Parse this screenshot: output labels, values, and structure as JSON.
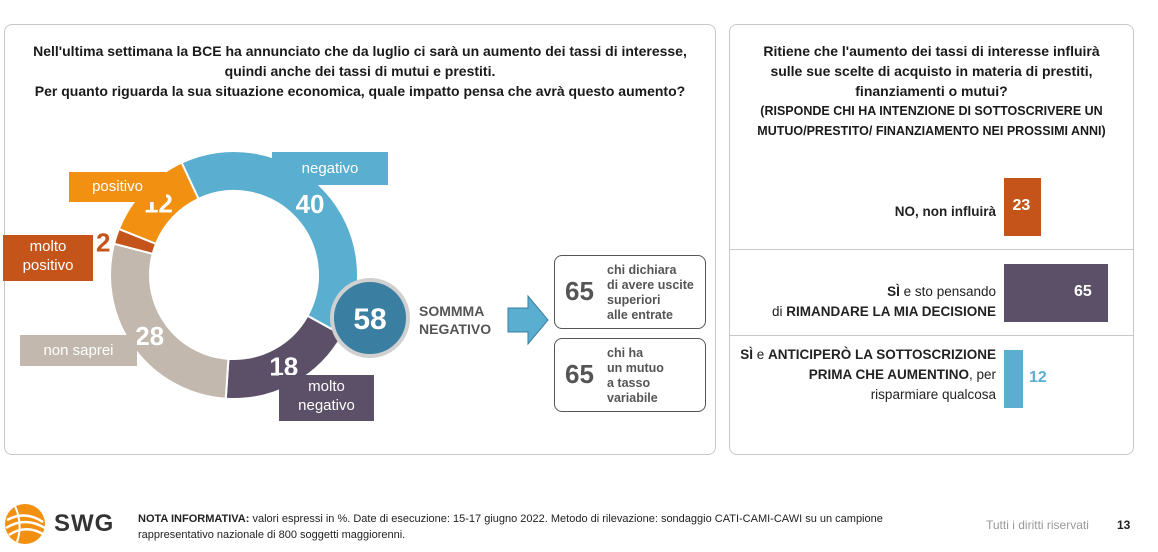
{
  "left": {
    "question_lines": [
      "Nell'ultima settimana la BCE ha annunciato che da luglio ci sarà un aumento dei tassi di interesse,",
      "quindi anche dei tassi di mutui e prestiti.",
      "Per quanto riguarda la sua situazione economica, quale impatto pensa che avrà questo aumento?"
    ],
    "sum_value": "58",
    "sum_label_1": "SOMMMA",
    "sum_label_2": "NEGATIVO",
    "info_boxes": [
      {
        "value": "65",
        "lines": [
          "chi dichiara",
          "di avere uscite",
          "superiori",
          "alle entrate"
        ]
      },
      {
        "value": "65",
        "lines": [
          "chi ha",
          "un mutuo",
          "a tasso",
          "variabile"
        ]
      }
    ]
  },
  "chart_data": [
    {
      "type": "pie",
      "categories": [
        "negativo",
        "molto negativo",
        "non saprei",
        "molto positivo",
        "positivo"
      ],
      "values": [
        40,
        18,
        28,
        2,
        12
      ],
      "value_labels": [
        "40",
        "18",
        "28",
        "2",
        "12"
      ],
      "label_lines": [
        [
          "negativo"
        ],
        [
          "molto",
          "negativo"
        ],
        [
          "non saprei"
        ],
        [
          "molto",
          "positivo"
        ],
        [
          "positivo"
        ]
      ],
      "colors": [
        "#5aaed0",
        "#5b5068",
        "#c2b8ae",
        "#c4541a",
        "#f29012"
      ]
    },
    {
      "type": "bar",
      "orientation": "horizontal",
      "categories": [
        "NO, non influirà",
        "SÌ e sto pensando di RIMANDARE LA MIA DECISIONE",
        "SÌ e ANTICIPERÒ LA SOTTOSCRIZIONE PRIMA CHE AUMENTINO, per risparmiare qualcosa"
      ],
      "values": [
        23,
        65,
        12
      ],
      "value_labels": [
        "23",
        "65",
        "12"
      ],
      "colors": [
        "#c4541a",
        "#5b5068",
        "#5aaed0"
      ]
    }
  ],
  "right": {
    "question_lines": [
      "Ritiene che l'aumento dei tassi di interesse influirà",
      "sulle sue scelte di acquisto in materia di prestiti,",
      "finanziamenti o mutui?"
    ],
    "sub_lines": [
      "(RISPONDE CHI HA INTENZIONE DI SOTTOSCRIVERE UN",
      "MUTUO/PRESTITO/ FINANZIAMENTO NEI PROSSIMI ANNI)"
    ],
    "row1": {
      "bold": "NO, non influirà"
    },
    "row2": {
      "line1_bold": "SÌ",
      "line1_rest": " e sto pensando",
      "line2_rest": "di ",
      "line2_bold": "RIMANDARE LA MIA DECISIONE"
    },
    "row3": {
      "line1_bold": "SÌ",
      "line1_rest": " e ",
      "line1_bold2": "ANTICIPERÒ LA SOTTOSCRIZIONE",
      "line2_bold": "PRIMA CHE AUMENTINO",
      "line2_rest": ", per",
      "line3": "risparmiare qualcosa"
    }
  },
  "footer": {
    "logo_text": "SWG",
    "note_bold": "NOTA INFORMATIVA:",
    "note_line1": " valori espressi in %. Date di esecuzione: 15-17 giugno 2022. Metodo di rilevazione: sondaggio CATI-CAMI-CAWI su un campione",
    "note_line2": "rappresentativo nazionale di 800 soggetti maggiorenni.",
    "rights": "Tutti i diritti riservati",
    "page": "13"
  },
  "colors": {
    "arrow": "#5aaed0",
    "sum_circle": "#3a7ea1"
  }
}
